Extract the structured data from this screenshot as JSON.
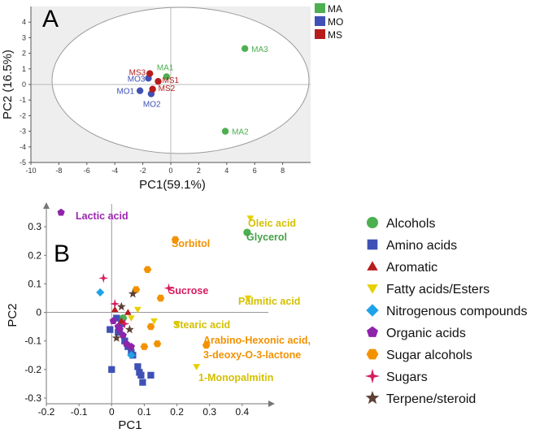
{
  "chart_data": [
    {
      "type": "scatter",
      "panel_label": "A",
      "xlabel": "PC1(59.1%)",
      "ylabel": "PC2 (16.5%)",
      "xlim": [
        -10,
        10
      ],
      "ylim": [
        -5,
        5
      ],
      "xticks": [
        -10,
        -8,
        -6,
        -4,
        -2,
        0,
        2,
        4,
        6,
        8
      ],
      "yticks": [
        4,
        3,
        2,
        1,
        0,
        -1,
        -2,
        -3,
        -4,
        -5
      ],
      "legend_position": "top-right",
      "series": [
        {
          "name": "MA",
          "color": "#4caf50",
          "points": [
            {
              "label": "MA1",
              "x": -0.3,
              "y": 0.5
            },
            {
              "label": "MA2",
              "x": 3.9,
              "y": -3.0
            },
            {
              "label": "MA3",
              "x": 5.3,
              "y": 2.3
            }
          ]
        },
        {
          "name": "MO",
          "color": "#3f51b5",
          "points": [
            {
              "label": "MO1",
              "x": -2.2,
              "y": -0.4
            },
            {
              "label": "MO2",
              "x": -1.4,
              "y": -0.6
            },
            {
              "label": "MO3",
              "x": -1.6,
              "y": 0.4
            }
          ]
        },
        {
          "name": "MS",
          "color": "#b71c1c",
          "points": [
            {
              "label": "MS1",
              "x": -0.9,
              "y": 0.2
            },
            {
              "label": "MS2",
              "x": -1.3,
              "y": -0.3
            },
            {
              "label": "MS3",
              "x": -1.5,
              "y": 0.7
            }
          ]
        }
      ]
    },
    {
      "type": "scatter",
      "panel_label": "B",
      "xlabel": "PC1",
      "ylabel": "PC2",
      "xlim": [
        -0.2,
        0.48
      ],
      "ylim": [
        -0.32,
        0.38
      ],
      "xticks": [
        "-0.2",
        "-0.1",
        "0",
        "0.1",
        "0.2",
        "0.3",
        "0.4"
      ],
      "yticks": [
        "0.3",
        "0.2",
        "0.1",
        "0",
        "-0.1",
        "-0.2",
        "-0.3"
      ],
      "legend_position": "right",
      "series": [
        {
          "name": "Alcohols",
          "color": "#4caf50",
          "marker": "circle",
          "points": [
            [
              0.415,
              0.28
            ],
            [
              0.035,
              -0.02
            ]
          ]
        },
        {
          "name": "Amino acids",
          "color": "#3f51b5",
          "marker": "square",
          "points": [
            [
              -0.005,
              -0.06
            ],
            [
              0.02,
              -0.07
            ],
            [
              0.04,
              -0.1
            ],
            [
              0.05,
              -0.12
            ],
            [
              0.06,
              -0.14
            ],
            [
              0.065,
              -0.15
            ],
            [
              0.0,
              -0.2
            ],
            [
              0.08,
              -0.19
            ],
            [
              0.085,
              -0.21
            ],
            [
              0.09,
              -0.22
            ],
            [
              0.095,
              -0.245
            ],
            [
              0.12,
              -0.22
            ],
            [
              0.015,
              -0.02
            ],
            [
              0.03,
              -0.04
            ]
          ]
        },
        {
          "name": "Aromatic",
          "color": "#b71c1c",
          "marker": "triangle-up",
          "points": [
            [
              0.01,
              0.01
            ],
            [
              0.03,
              -0.03
            ],
            [
              0.05,
              0.0
            ]
          ]
        },
        {
          "name": "Fatty acids/Esters",
          "color": "#e6d000",
          "marker": "triangle-down",
          "points": [
            [
              0.425,
              0.33
            ],
            [
              0.418,
              0.05
            ],
            [
              0.2,
              -0.04
            ],
            [
              0.26,
              -0.19
            ],
            [
              0.13,
              -0.03
            ],
            [
              0.08,
              0.01
            ],
            [
              0.06,
              -0.02
            ]
          ]
        },
        {
          "name": "Nitrogenous compounds",
          "color": "#1fa3e8",
          "marker": "diamond",
          "points": [
            [
              -0.035,
              0.07
            ],
            [
              0.06,
              -0.15
            ]
          ]
        },
        {
          "name": "Organic acids",
          "color": "#8e24aa",
          "marker": "pentagon",
          "points": [
            [
              -0.155,
              0.35
            ],
            [
              0.02,
              -0.05
            ],
            [
              0.035,
              -0.08
            ],
            [
              0.045,
              -0.11
            ],
            [
              0.06,
              -0.12
            ],
            [
              0.005,
              -0.03
            ],
            [
              0.025,
              -0.06
            ]
          ]
        },
        {
          "name": "Sugar alcohols",
          "color": "#f39200",
          "marker": "hexagon",
          "points": [
            [
              0.195,
              0.255
            ],
            [
              0.29,
              -0.115
            ],
            [
              0.11,
              0.15
            ],
            [
              0.075,
              0.08
            ],
            [
              0.14,
              -0.11
            ],
            [
              0.12,
              -0.05
            ],
            [
              0.1,
              -0.12
            ],
            [
              0.15,
              0.05
            ]
          ]
        },
        {
          "name": "Sugars",
          "color": "#d81b60",
          "marker": "star4",
          "points": [
            [
              0.175,
              0.085
            ],
            [
              -0.025,
              0.12
            ],
            [
              0.01,
              0.03
            ],
            [
              0.04,
              -0.04
            ]
          ]
        },
        {
          "name": "Terpene/steroid",
          "color": "#5d4037",
          "marker": "star5",
          "points": [
            [
              0.065,
              0.065
            ],
            [
              0.015,
              -0.09
            ],
            [
              0.03,
              0.02
            ],
            [
              0.055,
              -0.06
            ]
          ]
        }
      ],
      "annotations": [
        {
          "text": "Lactic acid",
          "color": "#9c27b0"
        },
        {
          "text": "Oleic acid",
          "color": "#d4c000"
        },
        {
          "text": "Glycerol",
          "color": "#43a047"
        },
        {
          "text": "Sorbitol",
          "color": "#f39200"
        },
        {
          "text": "Sucrose",
          "color": "#d81b60"
        },
        {
          "text": "Palmitic acid",
          "color": "#d4c000"
        },
        {
          "text": "Stearic acid",
          "color": "#d4c000"
        },
        {
          "text": "Arabino-Hexonic acid,",
          "color": "#f39200"
        },
        {
          "text": "3-deoxy-O-3-lactone",
          "color": "#f39200"
        },
        {
          "text": "1-Monopalmitin",
          "color": "#d4c000"
        }
      ]
    }
  ]
}
